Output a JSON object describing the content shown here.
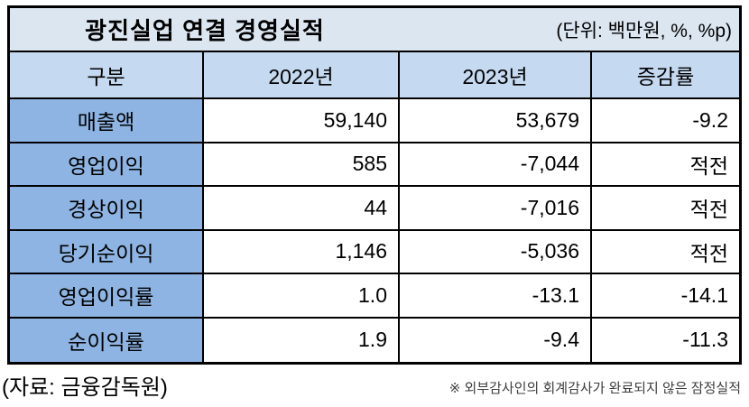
{
  "chart_data": {
    "type": "table",
    "title": "광진실업 연결 경영실적",
    "unit_label": "(단위: 백만원, %, %p)",
    "columns": [
      "구분",
      "2022년",
      "2023년",
      "증감률"
    ],
    "rows": [
      [
        "매출액",
        "59,140",
        "53,679",
        "-9.2"
      ],
      [
        "영업이익",
        "585",
        "-7,044",
        "적전"
      ],
      [
        "경상이익",
        "44",
        "-7,016",
        "적전"
      ],
      [
        "당기순이익",
        "1,146",
        "-5,036",
        "적전"
      ],
      [
        "영업이익률",
        "1.0",
        "-13.1",
        "-14.1"
      ],
      [
        "순이익률",
        "1.9",
        "-9.4",
        "-11.3"
      ]
    ],
    "source": "(자료: 금융감독원)",
    "note": "※ 외부감사인의 회계감사가 완료되지 않은 잠정실적"
  },
  "colors": {
    "title_row_bg": "#DCE6F1",
    "header_row_bg": "#C5D9F1",
    "label_column_bg": "#8DB4E2",
    "border": "#000000",
    "note_text": "#3D3D3D"
  }
}
